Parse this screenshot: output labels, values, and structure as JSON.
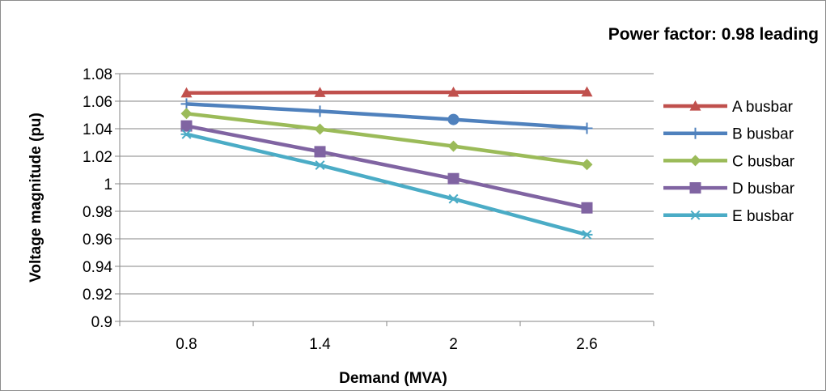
{
  "chart_data": {
    "type": "line",
    "title": "Power factor: 0.98 leading",
    "xlabel": "Demand (MVA)",
    "ylabel": "Voltage magnitude (pu)",
    "categories": [
      "0.8",
      "1.4",
      "2",
      "2.6"
    ],
    "ylim": [
      0.9,
      1.08
    ],
    "yticks": [
      "0.9",
      "0.92",
      "0.94",
      "0.96",
      "0.98",
      "1",
      "1.02",
      "1.04",
      "1.06",
      "1.08"
    ],
    "grid": "horizontal",
    "legend_position": "right",
    "series": [
      {
        "name": "A busbar",
        "values": [
          1.066,
          1.0663,
          1.0665,
          1.0667
        ],
        "color": "#C0504D",
        "marker": "triangle"
      },
      {
        "name": "B busbar",
        "values": [
          1.058,
          1.0527,
          1.0467,
          1.0403
        ],
        "color": "#4F81BD",
        "marker": "plus"
      },
      {
        "name": "C busbar",
        "values": [
          1.051,
          1.0397,
          1.0273,
          1.014
        ],
        "color": "#9BBB59",
        "marker": "diamond"
      },
      {
        "name": "D busbar",
        "values": [
          1.042,
          1.0233,
          1.0037,
          0.9825
        ],
        "color": "#8064A2",
        "marker": "square"
      },
      {
        "name": "E busbar",
        "values": [
          1.036,
          1.0135,
          0.989,
          0.963
        ],
        "color": "#4BACC6",
        "marker": "asterisk"
      }
    ]
  }
}
